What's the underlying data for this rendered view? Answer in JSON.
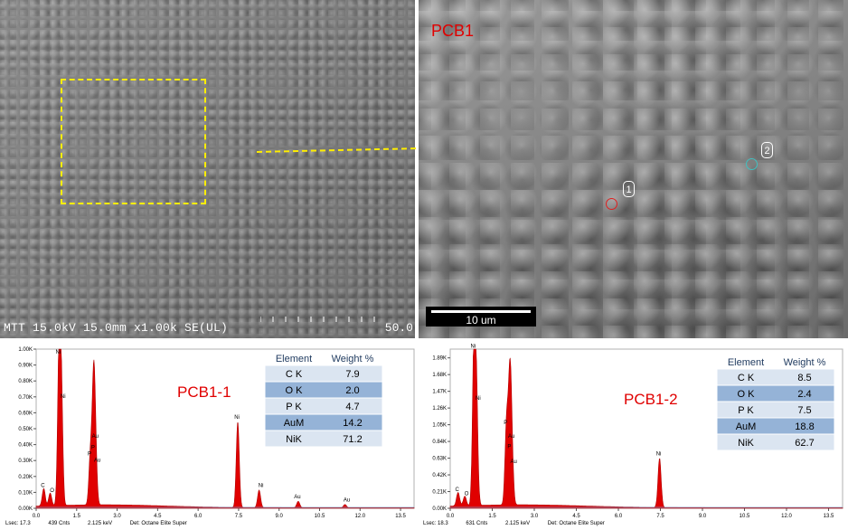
{
  "sem_left": {
    "footer": "MTT 15.0kV 15.0mm x1.00k SE(UL)",
    "scale_text": "50.0"
  },
  "sem_right": {
    "label": "PCB1",
    "scale_text": "10 um",
    "markers": [
      {
        "text": "1",
        "spot_color": "#e02020"
      },
      {
        "text": "2",
        "spot_color": "#40c0c0"
      }
    ]
  },
  "colors": {
    "peak_fill": "#e00000",
    "label_red": "#e00000",
    "roi": "#ffee00",
    "table_blue": "#95b3d7",
    "table_light": "#dbe5f1",
    "arrow": "#ffee00"
  },
  "chart_data": [
    {
      "type": "area",
      "title": "PCB1-1",
      "xlim": [
        0,
        14.0
      ],
      "ylim": [
        0,
        1.0
      ],
      "x_ticks": [
        "0.0",
        "1.5",
        "3.0",
        "4.5",
        "6.0",
        "7.5",
        "9.0",
        "10.5",
        "12.0",
        "13.5"
      ],
      "y_ticks": [
        "0.00K",
        "0.10K",
        "0.20K",
        "0.30K",
        "0.40K",
        "0.50K",
        "0.60K",
        "0.70K",
        "0.80K",
        "0.90K",
        "1.00K"
      ],
      "peaks": [
        {
          "label": "C",
          "x": 0.28,
          "y": 0.11
        },
        {
          "label": "O",
          "x": 0.52,
          "y": 0.08
        },
        {
          "label": "Ni",
          "x": 0.85,
          "y": 0.95
        },
        {
          "label": "Ni",
          "x": 0.93,
          "y": 0.67
        },
        {
          "label": "P",
          "x": 2.01,
          "y": 0.31
        },
        {
          "label": "Au",
          "x": 2.12,
          "y": 0.42
        },
        {
          "label": "P",
          "x": 2.14,
          "y": 0.35
        },
        {
          "label": "Au",
          "x": 2.2,
          "y": 0.27
        },
        {
          "label": "Ni",
          "x": 7.47,
          "y": 0.54
        },
        {
          "label": "Ni",
          "x": 8.26,
          "y": 0.11
        },
        {
          "label": "Au",
          "x": 9.71,
          "y": 0.04
        },
        {
          "label": "Au",
          "x": 11.44,
          "y": 0.02
        }
      ],
      "table": {
        "headers": [
          "Element",
          "Weight %"
        ],
        "rows": [
          [
            "C K",
            "7.9"
          ],
          [
            "O K",
            "2.0"
          ],
          [
            "P K",
            "4.7"
          ],
          [
            "AuM",
            "14.2"
          ],
          [
            "NiK",
            "71.2"
          ]
        ]
      },
      "footer": [
        "Lsec: 17.3",
        "439 Cnts",
        "2.125 keV",
        "Det: Octane Elite Super"
      ]
    },
    {
      "type": "area",
      "title": "PCB1-2",
      "xlim": [
        0,
        14.0
      ],
      "ylim": [
        0,
        2.0
      ],
      "x_ticks": [
        "0.0",
        "1.5",
        "3.0",
        "4.5",
        "6.0",
        "7.5",
        "9.0",
        "10.5",
        "12.0",
        "13.5"
      ],
      "y_ticks": [
        "0.00K",
        "0.21K",
        "0.42K",
        "0.63K",
        "0.84K",
        "1.05K",
        "1.26K",
        "1.47K",
        "1.68K",
        "1.89K"
      ],
      "peaks": [
        {
          "label": "C",
          "x": 0.28,
          "y": 0.17
        },
        {
          "label": "O",
          "x": 0.52,
          "y": 0.12
        },
        {
          "label": "Ni",
          "x": 0.85,
          "y": 1.97
        },
        {
          "label": "Ni",
          "x": 0.93,
          "y": 1.32
        },
        {
          "label": "P",
          "x": 2.01,
          "y": 1.01
        },
        {
          "label": "Au",
          "x": 2.12,
          "y": 0.84
        },
        {
          "label": "P",
          "x": 2.14,
          "y": 0.71
        },
        {
          "label": "Au",
          "x": 2.2,
          "y": 0.52
        },
        {
          "label": "Ni",
          "x": 7.47,
          "y": 0.62
        }
      ],
      "table": {
        "headers": [
          "Element",
          "Weight %"
        ],
        "rows": [
          [
            "C K",
            "8.5"
          ],
          [
            "O K",
            "2.4"
          ],
          [
            "P K",
            "7.5"
          ],
          [
            "AuM",
            "18.8"
          ],
          [
            "NiK",
            "62.7"
          ]
        ]
      },
      "footer": [
        "Lsec: 18.3",
        "631 Cnts",
        "2.125 keV",
        "Det: Octane Elite Super"
      ]
    }
  ]
}
